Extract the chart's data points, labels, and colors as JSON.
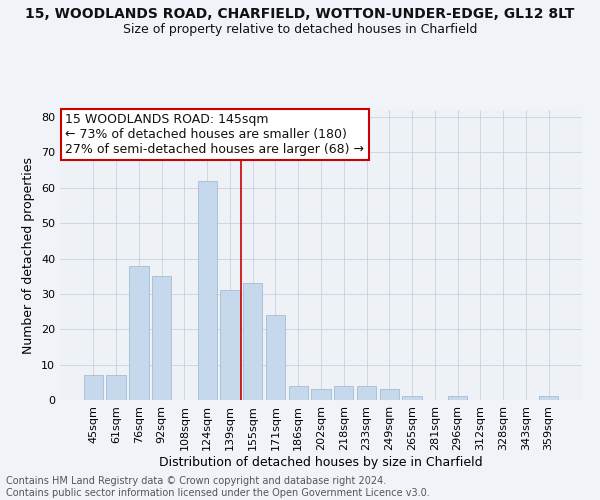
{
  "title": "15, WOODLANDS ROAD, CHARFIELD, WOTTON-UNDER-EDGE, GL12 8LT",
  "subtitle": "Size of property relative to detached houses in Charfield",
  "xlabel": "Distribution of detached houses by size in Charfield",
  "ylabel": "Number of detached properties",
  "categories": [
    "45sqm",
    "61sqm",
    "76sqm",
    "92sqm",
    "108sqm",
    "124sqm",
    "139sqm",
    "155sqm",
    "171sqm",
    "186sqm",
    "202sqm",
    "218sqm",
    "233sqm",
    "249sqm",
    "265sqm",
    "281sqm",
    "296sqm",
    "312sqm",
    "328sqm",
    "343sqm",
    "359sqm"
  ],
  "values": [
    7,
    7,
    38,
    35,
    0,
    62,
    31,
    33,
    24,
    4,
    3,
    4,
    4,
    3,
    1,
    0,
    1,
    0,
    0,
    0,
    1
  ],
  "bar_color_normal": "#c5d8ec",
  "annotation_text": "15 WOODLANDS ROAD: 145sqm\n← 73% of detached houses are smaller (180)\n27% of semi-detached houses are larger (68) →",
  "annotation_box_color": "#ffffff",
  "annotation_box_edge": "#cc0000",
  "vline_color": "#cc0000",
  "vline_x": 6.5,
  "ylim": [
    0,
    82
  ],
  "yticks": [
    0,
    10,
    20,
    30,
    40,
    50,
    60,
    70,
    80
  ],
  "footer_line1": "Contains HM Land Registry data © Crown copyright and database right 2024.",
  "footer_line2": "Contains public sector information licensed under the Open Government Licence v3.0.",
  "background_color": "#f0f4f8",
  "plot_bg_color": "#eef2f7",
  "grid_color": "#c8d4e0",
  "title_fontsize": 10,
  "subtitle_fontsize": 9,
  "xlabel_fontsize": 9,
  "ylabel_fontsize": 9,
  "tick_fontsize": 8,
  "annotation_fontsize": 9,
  "footer_fontsize": 7
}
